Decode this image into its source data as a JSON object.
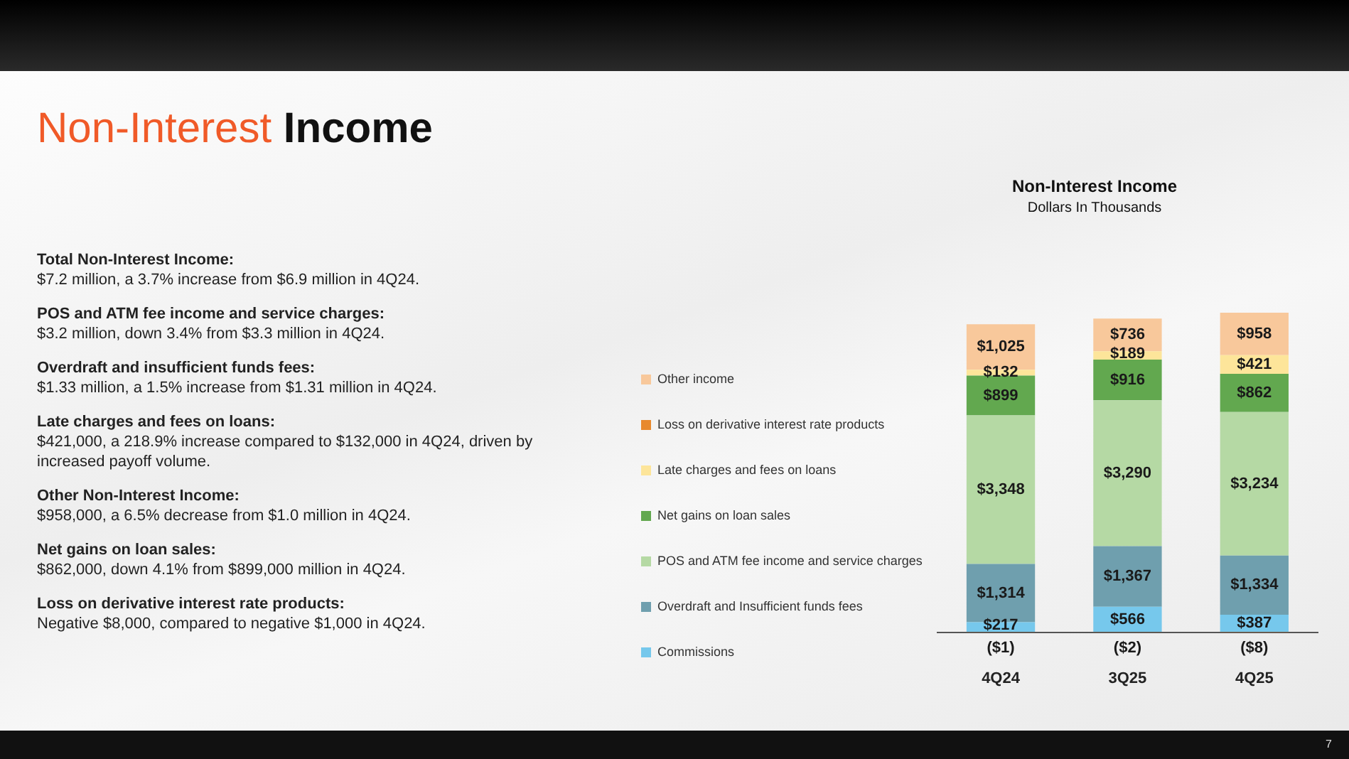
{
  "chart_data": {
    "type": "bar",
    "title": "Non-Interest Income",
    "subtitle": "Dollars In Thousands",
    "categories": [
      "4Q24",
      "3Q25",
      "4Q25"
    ],
    "stacked": true,
    "legend": "left",
    "series": [
      {
        "name": "Commissions",
        "color": "#76c8ec",
        "values": [
          217,
          566,
          387
        ],
        "value_labels": [
          "$217",
          "$566",
          "$387"
        ]
      },
      {
        "name": "Overdraft and Insufficient funds fees",
        "color": "#6f9fae",
        "values": [
          1314,
          1367,
          1334
        ],
        "value_labels": [
          "$1,314",
          "$1,367",
          "$1,334"
        ]
      },
      {
        "name": "POS and ATM fee income and service charges",
        "color": "#b5d9a4",
        "values": [
          3348,
          3290,
          3234
        ],
        "value_labels": [
          "$3,348",
          "$3,290",
          "$3,234"
        ]
      },
      {
        "name": "Net gains on loan sales",
        "color": "#62a84f",
        "values": [
          899,
          916,
          862
        ],
        "value_labels": [
          "$899",
          "$916",
          "$862"
        ]
      },
      {
        "name": "Late charges and fees on loans",
        "color": "#fde59a",
        "values": [
          132,
          189,
          421
        ],
        "value_labels": [
          "$132",
          "$189",
          "$421"
        ]
      },
      {
        "name": "Loss on derivative interest rate products",
        "color": "#e8892e",
        "values": [
          -1,
          -2,
          -8
        ],
        "value_labels": [
          "($1)",
          "($2)",
          "($8)"
        ]
      },
      {
        "name": "Other income",
        "color": "#f8c89b",
        "values": [
          1025,
          736,
          958
        ],
        "value_labels": [
          "$1,025",
          "$736",
          "$958"
        ]
      }
    ],
    "annotations": [
      "Non-Interest Income",
      "Total Non-Interest Income:",
      "$7.2 million, a 3.7% increase from $6.9 million in 4Q24.",
      "POS and ATM fee income and service charges:",
      "$3.2 million, down 3.4% from $3.3 million in 4Q24.",
      "Overdraft and insufficient funds fees:",
      "$1.33 million, a 1.5% increase from $1.31 million in 4Q24.",
      "Late charges and fees on loans:",
      "$421,000, a 218.9% increase compared to $132,000 in 4Q24, driven by increased payoff volume.",
      "Other Non-Interest Income:",
      "$958,000, a 6.5% decrease from $1.0 million in 4Q24.",
      "Net gains on loan sales:",
      "$862,000, down 4.1% from $899,000 million in 4Q24.",
      "Loss on derivative interest rate products:",
      "Negative $8,000, compared to negative $1,000 in 4Q24.",
      "7"
    ]
  }
}
